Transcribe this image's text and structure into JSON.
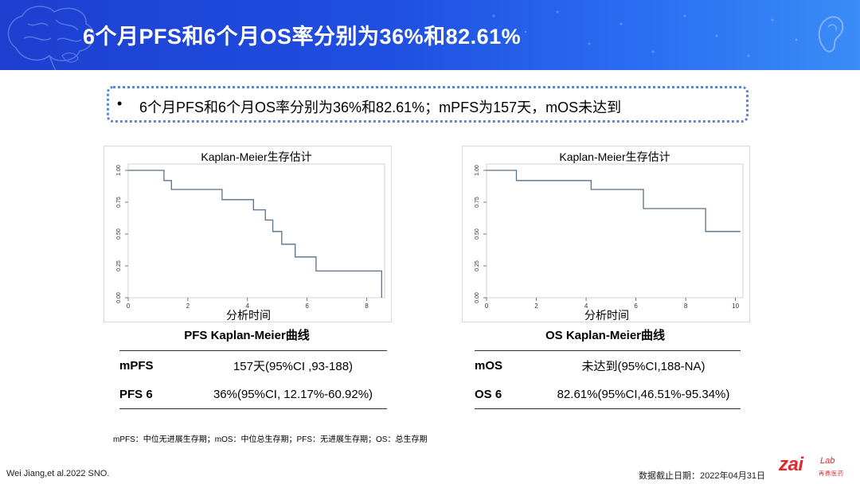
{
  "header": {
    "title": "6个月PFS和6个月OS率分别为36%和82.61%",
    "brain_icon": "brain-icon",
    "ear_icon": "ear-icon"
  },
  "summary": {
    "bullet": "•",
    "text": "6个月PFS和6个月OS率分别为36%和82.61%；mPFS为157天，mOS未达到"
  },
  "charts": [
    {
      "title": "Kaplan-Meier生存估计",
      "xlabel": "分析时间",
      "caption": "PFS Kaplan-Meier曲线",
      "x_ticks": [
        "0",
        "2",
        "4",
        "6",
        "8"
      ],
      "y_ticks": [
        "0.00",
        "0.25",
        "0.50",
        "0.75",
        "1.00"
      ]
    },
    {
      "title": "Kaplan-Meier生存估计",
      "xlabel": "分析时间",
      "caption": "OS Kaplan-Meier曲线",
      "x_ticks": [
        "0",
        "2",
        "4",
        "6",
        "8",
        "10"
      ],
      "y_ticks": [
        "0.00",
        "0.25",
        "0.50",
        "0.75",
        "1.00"
      ]
    }
  ],
  "chart_data": [
    {
      "type": "line",
      "title": "Kaplan-Meier生存估计",
      "xlabel": "分析时间",
      "ylabel": "",
      "xlim": [
        0,
        8.6
      ],
      "ylim": [
        0,
        1.05
      ],
      "grid": false,
      "series": [
        {
          "x": [
            0,
            1.2,
            1.2,
            1.45,
            1.45,
            3.15,
            3.15,
            4.2,
            4.2,
            4.6,
            4.6,
            4.85,
            4.85,
            5.15,
            5.15,
            5.6,
            5.6,
            6.3,
            6.3,
            8.5,
            8.5
          ],
          "y": [
            1.0,
            1.0,
            0.92,
            0.92,
            0.85,
            0.85,
            0.77,
            0.77,
            0.69,
            0.69,
            0.61,
            0.61,
            0.52,
            0.52,
            0.42,
            0.42,
            0.32,
            0.32,
            0.21,
            0.21,
            0.0
          ]
        }
      ]
    },
    {
      "type": "line",
      "title": "Kaplan-Meier生存估计",
      "xlabel": "分析时间",
      "ylabel": "",
      "xlim": [
        0,
        10.3
      ],
      "ylim": [
        0,
        1.05
      ],
      "grid": false,
      "series": [
        {
          "x": [
            0,
            1.2,
            1.2,
            4.2,
            4.2,
            6.3,
            6.3,
            8.8,
            8.8,
            10.2
          ],
          "y": [
            1.0,
            1.0,
            0.92,
            0.92,
            0.85,
            0.85,
            0.7,
            0.7,
            0.52,
            0.52
          ]
        }
      ]
    }
  ],
  "tables": [
    {
      "rows": [
        {
          "label": "mPFS",
          "value": "157天(95%CI ,93-188)"
        },
        {
          "label": "PFS 6",
          "value": "36%(95%CI, 12.17%-60.92%)"
        }
      ]
    },
    {
      "rows": [
        {
          "label": "mOS",
          "value": "未达到(95%CI,188-NA)"
        },
        {
          "label": "OS 6",
          "value": "82.61%(95%CI,46.51%-95.34%)"
        }
      ]
    }
  ],
  "footnote": "mPFS：中位无进展生存期；mOS：中位总生存期；PFS：无进展生存期；OS：总生存期",
  "reference": "Wei Jiang,et al.2022 SNO.",
  "cutoff": "数据截止日期：2022年04月31日",
  "logo": {
    "main": "zai",
    "sub": "Lab",
    "cn": "再鼎医药"
  },
  "colors": {
    "header_start": "#1e3fd0",
    "header_end": "#3b8cf7",
    "curve": "#5a6f8a",
    "box_border": "#5b86d6",
    "logo": "#e3282b"
  }
}
